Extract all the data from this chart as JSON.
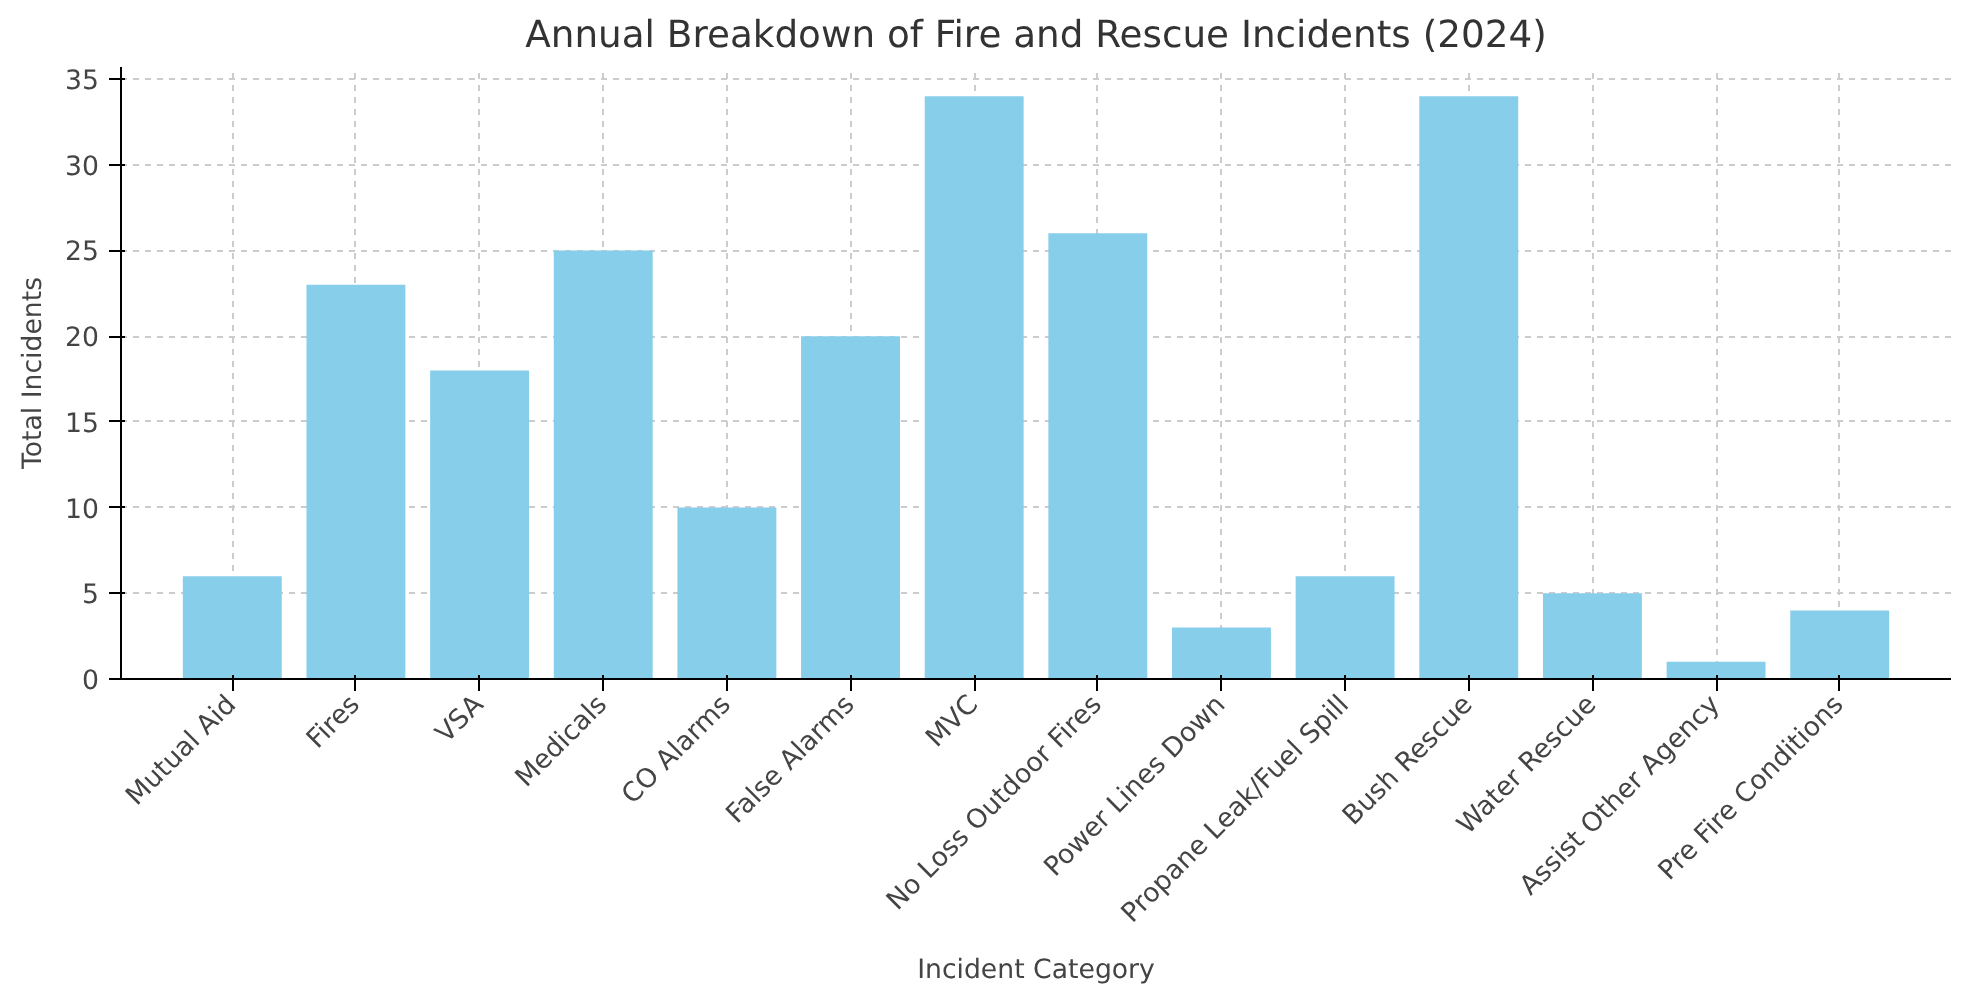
{
  "chart_data": {
    "type": "bar",
    "title": "Annual Breakdown of Fire and Rescue Incidents (2024)",
    "xlabel": "Incident Category",
    "ylabel": "Total Incidents",
    "categories": [
      "Mutual Aid",
      "Fires",
      "VSA",
      "Medicals",
      "CO Alarms",
      "False Alarms",
      "MVC",
      "No Loss Outdoor Fires",
      "Power Lines Down",
      "Propane Leak/Fuel Spill",
      "Bush Rescue",
      "Water Rescue",
      "Assist Other Agency",
      "Pre Fire Conditions"
    ],
    "values": [
      6,
      23,
      18,
      25,
      10,
      20,
      34,
      26,
      3,
      6,
      34,
      5,
      1,
      4
    ],
    "color": "#87ceeb",
    "ylim": [
      0,
      35.7
    ],
    "yticks": [
      0,
      5,
      10,
      15,
      20,
      25,
      30,
      35
    ],
    "grid": true
  }
}
